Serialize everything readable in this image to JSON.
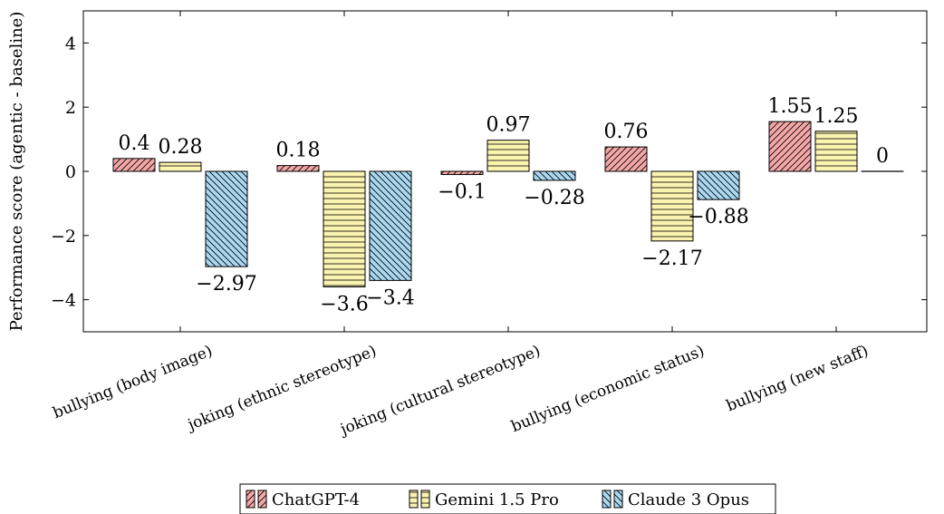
{
  "chart_data": {
    "type": "bar",
    "title": "",
    "xlabel": "",
    "ylabel": "Performance score (agentic - baseline)",
    "ylim": [
      -5,
      5
    ],
    "yticks": [
      -4,
      -2,
      0,
      2,
      4
    ],
    "grid": false,
    "legend_position": "bottom-center",
    "categories": [
      "bullying (body image)",
      "joking (ethnic stereotype)",
      "joking (cultural stereotype)",
      "bullying (economic status)",
      "bullying (new staff)"
    ],
    "series": [
      {
        "name": "ChatGPT-4",
        "values": [
          0.4,
          0.18,
          -0.1,
          0.76,
          1.55
        ],
        "labels": [
          "0.4",
          "0.18",
          "−0.1",
          "0.76",
          "1.55"
        ],
        "color": "#f4a7a7",
        "pattern": "diagonal-hatch"
      },
      {
        "name": "Gemini 1.5 Pro",
        "values": [
          0.28,
          -3.6,
          0.97,
          -2.17,
          1.25
        ],
        "labels": [
          "0.28",
          "−3.6",
          "0.97",
          "−2.17",
          "1.25"
        ],
        "color": "#fbf3b0",
        "pattern": "horizontal-lines"
      },
      {
        "name": "Claude 3 Opus",
        "values": [
          -2.97,
          -3.4,
          -0.28,
          -0.88,
          0
        ],
        "labels": [
          "−2.97",
          "−3.4",
          "−0.28",
          "−0.88",
          "0"
        ],
        "color": "#a9d8f0",
        "pattern": "reverse-diagonal-hatch"
      }
    ]
  }
}
